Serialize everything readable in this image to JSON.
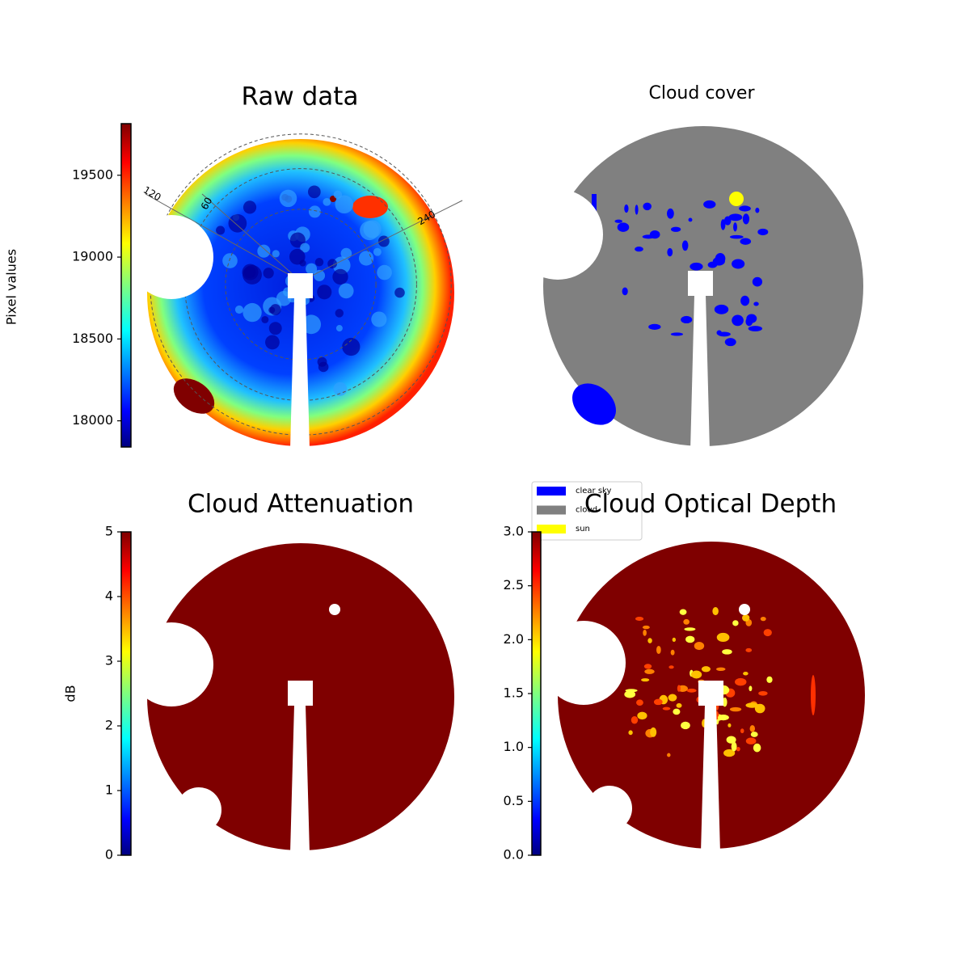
{
  "chart_data": [
    {
      "type": "image",
      "title": "Raw data",
      "ylabel": "Pixel values",
      "colormap": "jet",
      "ylim": [
        17840,
        19815
      ],
      "yticks": [
        18000,
        18500,
        19000,
        19500
      ],
      "annotations": [
        "120",
        "60",
        "240"
      ]
    },
    {
      "type": "image",
      "title": "Cloud cover",
      "series": [
        {
          "name": "clear sky",
          "color": "#0000ff"
        },
        {
          "name": "cloud",
          "color": "#808080"
        },
        {
          "name": "sun",
          "color": "#ffff00"
        }
      ]
    },
    {
      "type": "image",
      "title": "Cloud Attenuation",
      "ylabel": "dB",
      "colormap": "jet",
      "ylim": [
        0,
        5
      ],
      "yticks": [
        0,
        1,
        2,
        3,
        4,
        5
      ]
    },
    {
      "type": "image",
      "title": "Cloud Optical Depth",
      "colormap": "jet",
      "ylim": [
        0,
        3
      ],
      "yticks": [
        {
          "value": 0,
          "label": "0.0"
        },
        0.5,
        {
          "value": 1,
          "label": "1.0"
        },
        1.5,
        {
          "value": 2,
          "label": "2.0"
        },
        2.5,
        {
          "value": 3,
          "label": "3.0"
        }
      ]
    }
  ]
}
